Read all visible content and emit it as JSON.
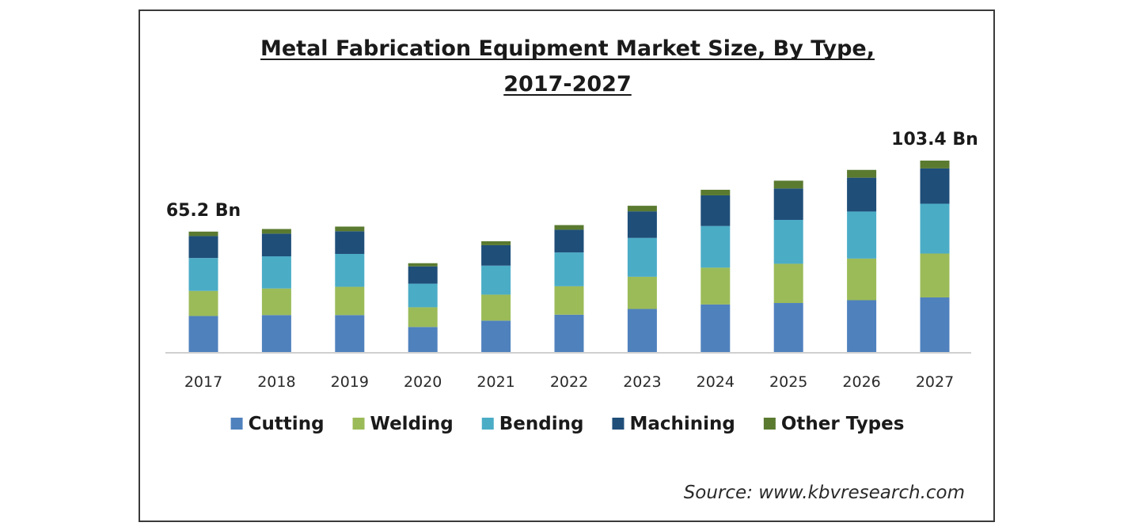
{
  "chart_data": {
    "type": "bar",
    "stacked": true,
    "title_lines": [
      "Metal Fabrication Equipment Market Size, By Type,",
      "2017-2027"
    ],
    "categories": [
      "2017",
      "2018",
      "2019",
      "2020",
      "2021",
      "2022",
      "2023",
      "2024",
      "2025",
      "2026",
      "2027"
    ],
    "series": [
      {
        "name": "Cutting",
        "color": "#4f81bd",
        "values": [
          19.8,
          20.3,
          20.3,
          13.9,
          17.3,
          20.5,
          23.6,
          26.0,
          26.8,
          28.3,
          29.8
        ]
      },
      {
        "name": "Welding",
        "color": "#9bbb59",
        "values": [
          13.5,
          14.3,
          15.2,
          10.6,
          14.0,
          15.3,
          17.3,
          19.8,
          21.1,
          22.4,
          23.6
        ]
      },
      {
        "name": "Bending",
        "color": "#4bacc6",
        "values": [
          17.7,
          17.3,
          17.7,
          12.7,
          15.6,
          18.2,
          20.9,
          22.4,
          23.6,
          25.3,
          26.8
        ]
      },
      {
        "name": "Machining",
        "color": "#1f4e79",
        "values": [
          11.8,
          12.2,
          12.2,
          9.3,
          11.0,
          12.2,
          14.3,
          16.5,
          16.9,
          18.2,
          19.0
        ]
      },
      {
        "name": "Other Types",
        "color": "#5a7a30",
        "values": [
          2.4,
          2.5,
          2.5,
          1.7,
          2.1,
          2.5,
          3.0,
          3.0,
          4.2,
          4.2,
          4.2
        ]
      }
    ],
    "total_labels": [
      {
        "category": "2017",
        "text": "65.2 Bn"
      },
      {
        "category": "2027",
        "text": "103.4 Bn"
      }
    ],
    "ylim": [
      0,
      110
    ],
    "grid": false,
    "legend_position": "bottom",
    "source": "Source: www.kbvresearch.com"
  }
}
